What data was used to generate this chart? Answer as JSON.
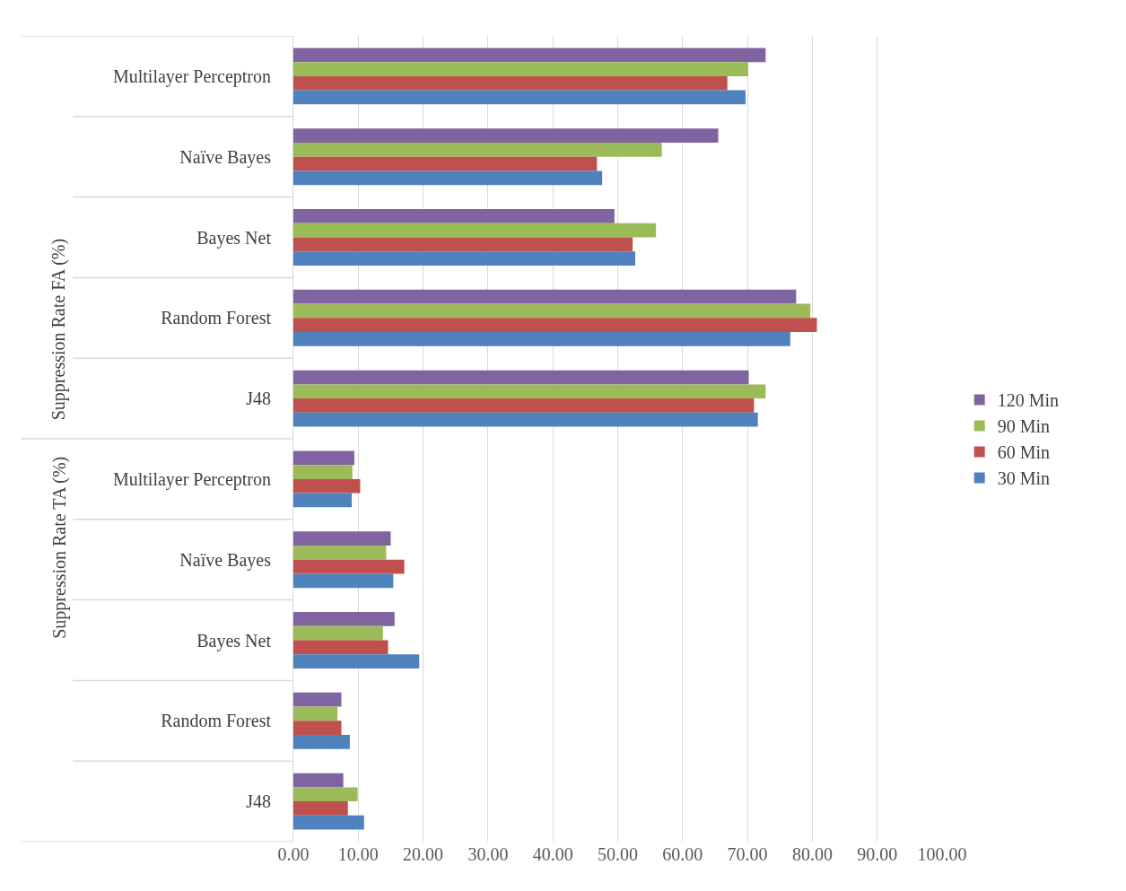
{
  "chart_data": {
    "type": "bar",
    "orientation": "horizontal",
    "categories": [
      "Multilayer Perceptron",
      "Naïve Bayes",
      "Bayes Net",
      "Random Forest",
      "J48",
      "Multilayer Perceptron",
      "Naïve Bayes",
      "Bayes Net",
      "Random Forest",
      "J48"
    ],
    "annotations": [
      "Suppression Rate FA (%)",
      "Suppression Rate TA (%)"
    ],
    "series": [
      {
        "name": "120 Min",
        "color": "#8064a2",
        "values": [
          72.8,
          65.5,
          49.5,
          77.5,
          70.2,
          9.4,
          15.0,
          15.6,
          7.4,
          7.7
        ]
      },
      {
        "name": "90 Min",
        "color": "#9bbb59",
        "values": [
          70.1,
          56.8,
          55.9,
          79.7,
          72.8,
          9.1,
          14.3,
          13.8,
          6.8,
          9.9
        ]
      },
      {
        "name": "60 Min",
        "color": "#c0504d",
        "values": [
          66.9,
          46.8,
          52.3,
          80.7,
          71.0,
          10.3,
          17.1,
          14.6,
          7.4,
          8.4
        ]
      },
      {
        "name": "30 Min",
        "color": "#4f81bd",
        "values": [
          69.7,
          47.6,
          52.7,
          76.6,
          71.6,
          9.0,
          15.4,
          19.4,
          8.7,
          10.9
        ]
      }
    ],
    "xlim": [
      0,
      100
    ],
    "xticks": [
      {
        "value": 0,
        "label": "0.00"
      },
      {
        "value": 10,
        "label": "10.00"
      },
      {
        "value": 20,
        "label": "20.00"
      },
      {
        "value": 30,
        "label": "30.00"
      },
      {
        "value": 40,
        "label": "40.00"
      },
      {
        "value": 50,
        "label": "50.00"
      },
      {
        "value": 60,
        "label": "60.00"
      },
      {
        "value": 70,
        "label": "70.00"
      },
      {
        "value": 80,
        "label": "80.00"
      },
      {
        "value": 90,
        "label": "90.00"
      },
      {
        "value": 100,
        "label": "100.00"
      }
    ],
    "grid": "x",
    "legend": "right"
  }
}
